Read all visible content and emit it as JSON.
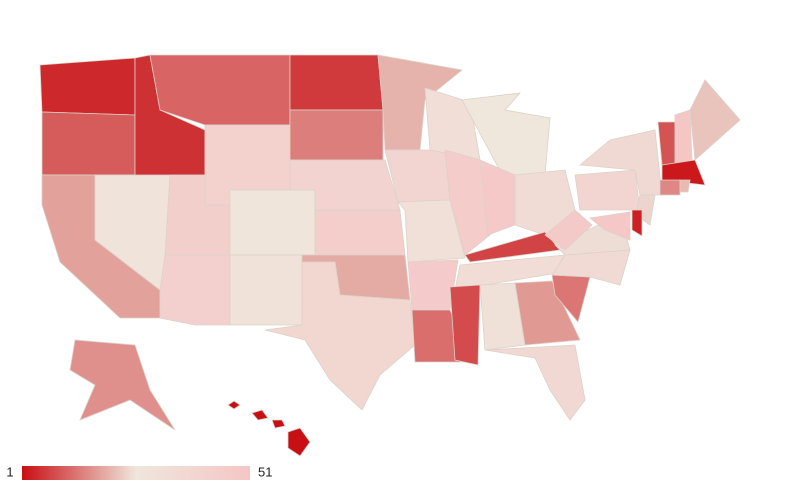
{
  "chart_data": {
    "type": "choropleth",
    "values": [
      4,
      10,
      18,
      28,
      5,
      11,
      42,
      44,
      27,
      43,
      29,
      6,
      14,
      41,
      45,
      19,
      38,
      20,
      40,
      31,
      47,
      12,
      32,
      46,
      26,
      49,
      34,
      7,
      33,
      8,
      30,
      17,
      37,
      13,
      35,
      25,
      48,
      39,
      36,
      24,
      3,
      50,
      9,
      51,
      22,
      2,
      15,
      21,
      16,
      1
    ],
    "colorlim": [
      1,
      51
    ],
    "colors": [
      "#c80f14",
      "#efe6dc",
      "#f5c6c6"
    ]
  }
}
